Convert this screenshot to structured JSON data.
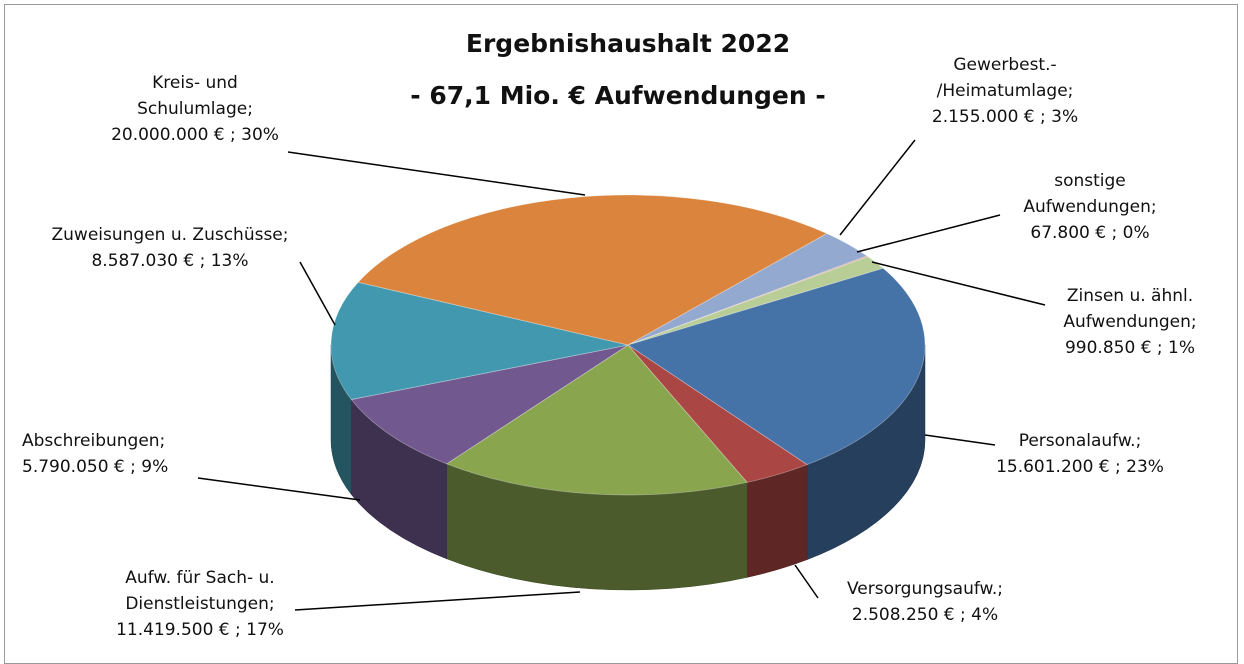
{
  "chart_data": {
    "type": "pie3d",
    "title": "Ergebnishaushalt 2022",
    "subtitle": "- 67,1 Mio. € Aufwendungen -",
    "categories": [
      "Gewerbest.-\n/Heimatumlage;",
      "sonstige\nAufwendungen;",
      "Zinsen u. ähnl.\nAufwendungen;",
      "Personalaufw.;",
      "Versorgungsaufw.;",
      "Aufw. für Sach- u.\nDienstleistungen;",
      "Abschreibungen;",
      "Zuweisungen u. Zuschüsse;",
      "Kreis- und\nSchulumlage;"
    ],
    "values": [
      2155000,
      67800,
      990850,
      15601200,
      2508250,
      11419500,
      5790050,
      8587030,
      20000000
    ],
    "value_labels": [
      "2.155.000 € ; 3%",
      "67.800 € ; 0%",
      "990.850 € ; 1%",
      "15.601.200 € ; 23%",
      "2.508.250 € ; 4%",
      "11.419.500 € ; 17%",
      "5.790.050 € ; 9%",
      "8.587.030 € ; 13%",
      "20.000.000 € ; 30%"
    ],
    "colors": [
      "#93a9cf",
      "#d19392",
      "#b9cd96",
      "#4572a7",
      "#aa4643",
      "#89a54e",
      "#71588f",
      "#4198af",
      "#db843d"
    ]
  }
}
